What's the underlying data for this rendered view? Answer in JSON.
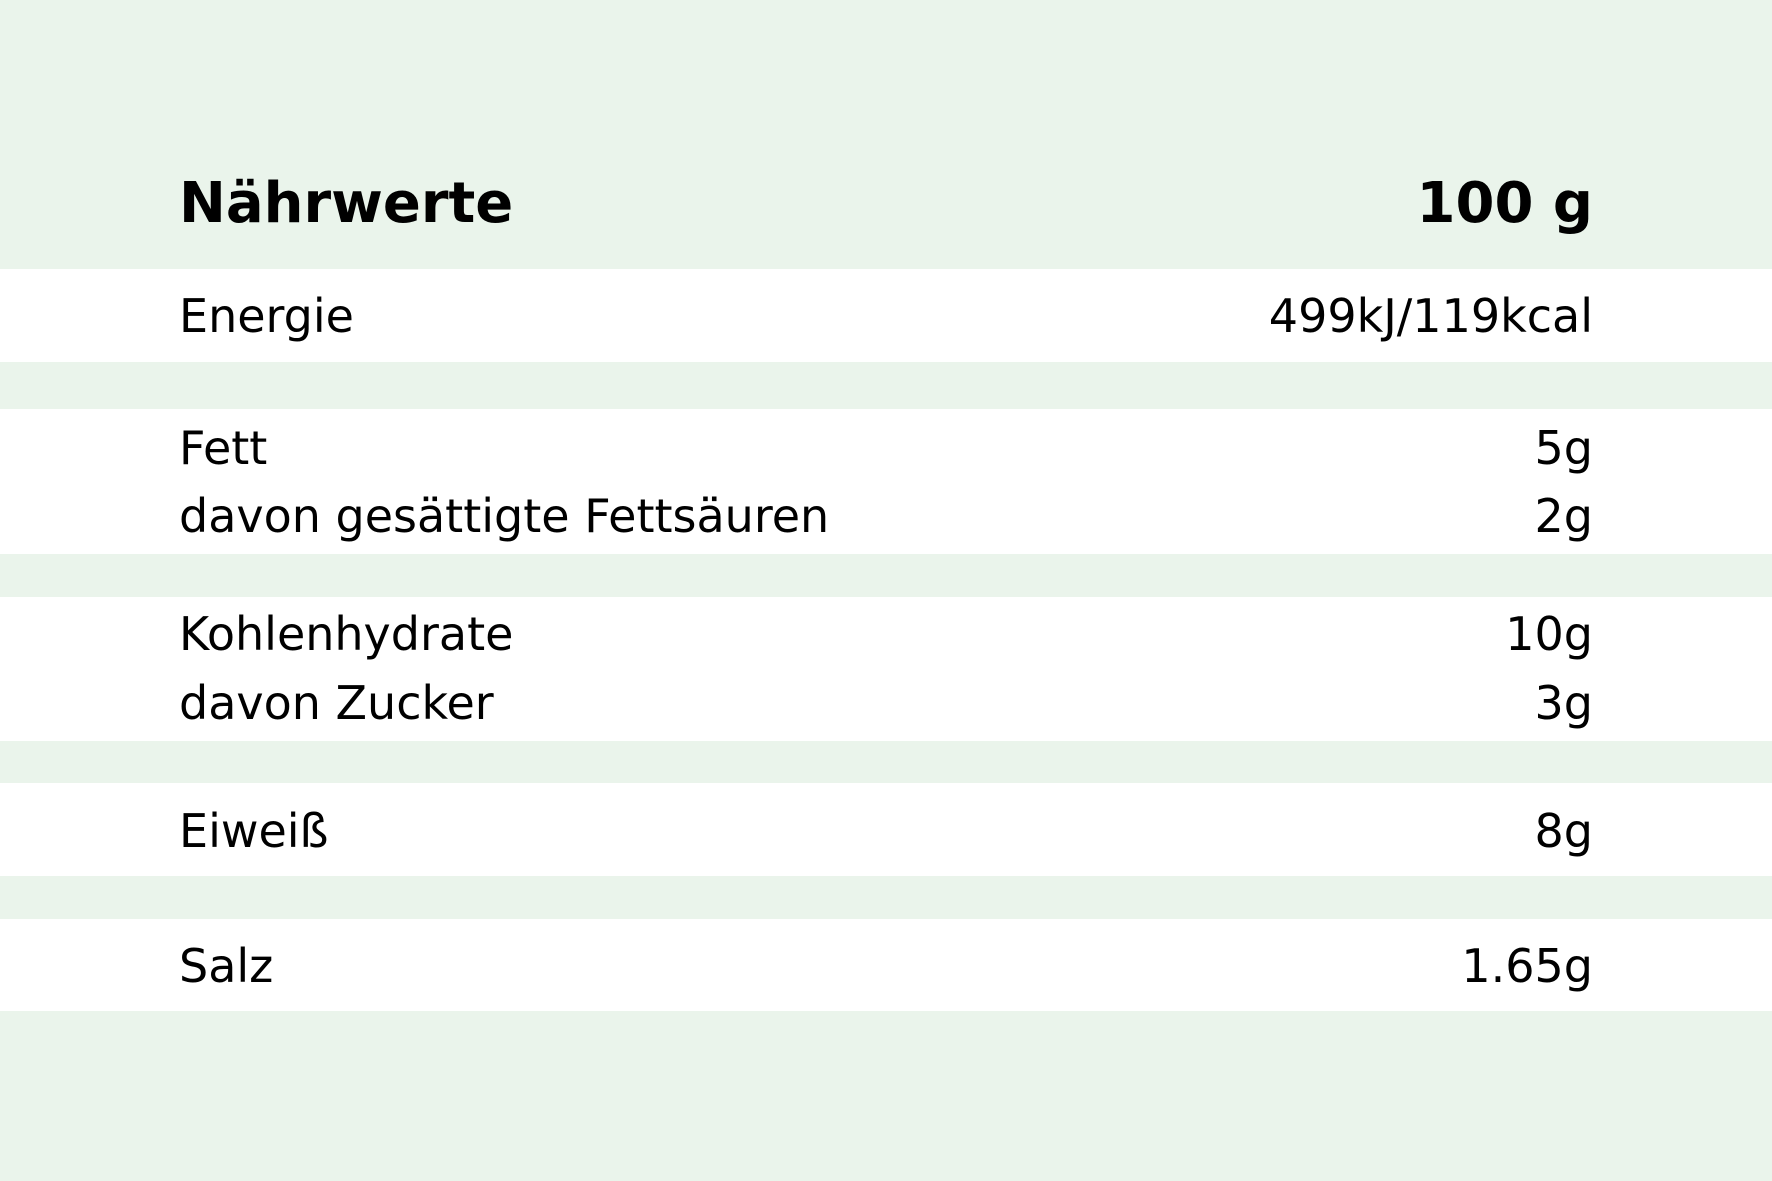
{
  "colors": {
    "background": "#eaf4eb",
    "row": "#ffffff",
    "text": "#000000"
  },
  "header": {
    "label": "Nährwerte",
    "value": "100 g"
  },
  "rows": [
    {
      "label": "Energie",
      "value": "499kJ/119kcal"
    },
    {
      "label": "Fett",
      "value": "5g"
    },
    {
      "label": "davon gesättigte Fettsäuren",
      "value": "2g"
    },
    {
      "label": "Kohlenhydrate",
      "value": "10g"
    },
    {
      "label": "davon Zucker",
      "value": "3g"
    },
    {
      "label": "Eiweiß",
      "value": "8g"
    },
    {
      "label": "Salz",
      "value": "1.65g"
    }
  ]
}
